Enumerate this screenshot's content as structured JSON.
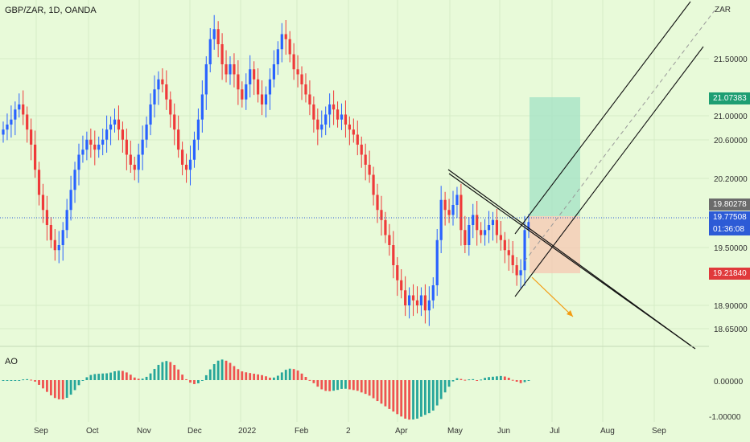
{
  "header": {
    "symbol": "GBP/ZAR, 1D, OANDA",
    "currency": "ZAR"
  },
  "oscillator": {
    "label": "AO"
  },
  "price_labels": {
    "target": {
      "value": "21.07383",
      "color": "#1e9e72"
    },
    "entry": {
      "value": "19.80278",
      "color": "#6b6b6b"
    },
    "last": {
      "value": "19.77508",
      "color": "#2d5bd6"
    },
    "countdown": {
      "value": "01:36:08",
      "color": "#2d5bd6"
    },
    "stop": {
      "value": "19.21840",
      "color": "#e0393b"
    }
  },
  "colors": {
    "bg": "#e8fad9",
    "up": "#2962ff",
    "down": "#ef3a3a",
    "ao_up": "#26a69a",
    "ao_down": "#ef5350"
  },
  "chart_data": {
    "type": "candlestick",
    "title": "GBP/ZAR, 1D, OANDA",
    "price_axis": {
      "ticks": [
        "21.50000",
        "21.00000",
        "20.60000",
        "20.20000",
        "19.50000",
        "18.90000",
        "18.65000"
      ]
    },
    "time_axis": {
      "ticks": [
        "Sep",
        "Oct",
        "Nov",
        "Dec",
        "2022",
        "Feb",
        "2",
        "Apr",
        "May",
        "Jun",
        "Jul",
        "Aug",
        "Sep"
      ]
    },
    "close_series": [
      20.7,
      20.75,
      20.8,
      20.9,
      20.95,
      20.85,
      20.7,
      20.55,
      20.3,
      20.05,
      19.9,
      19.75,
      19.6,
      19.5,
      19.55,
      19.7,
      19.9,
      20.1,
      20.3,
      20.45,
      20.5,
      20.6,
      20.55,
      20.5,
      20.55,
      20.6,
      20.7,
      20.75,
      20.8,
      20.7,
      20.6,
      20.45,
      20.35,
      20.3,
      20.45,
      20.6,
      20.75,
      20.95,
      21.1,
      21.2,
      21.15,
      21.0,
      20.85,
      20.7,
      20.5,
      20.35,
      20.3,
      20.4,
      20.6,
      20.8,
      21.05,
      21.35,
      21.6,
      21.7,
      21.55,
      21.35,
      21.25,
      21.35,
      21.25,
      21.1,
      21.0,
      21.15,
      21.3,
      21.2,
      21.05,
      20.95,
      21.05,
      21.2,
      21.35,
      21.5,
      21.65,
      21.6,
      21.45,
      21.3,
      21.25,
      21.15,
      21.05,
      20.95,
      20.8,
      20.7,
      20.75,
      20.85,
      20.95,
      20.9,
      20.8,
      20.85,
      20.75,
      20.7,
      20.65,
      20.55,
      20.45,
      20.35,
      20.25,
      20.05,
      19.9,
      19.8,
      19.65,
      19.55,
      19.35,
      19.2,
      19.1,
      18.95,
      19.05,
      19.0,
      18.95,
      19.05,
      18.9,
      19.0,
      19.15,
      19.6,
      20.0,
      19.9,
      19.85,
      19.95,
      20.05,
      19.7,
      19.55,
      19.75,
      19.85,
      19.7,
      19.65,
      19.7,
      19.75,
      19.8,
      19.65,
      19.6,
      19.5,
      19.45,
      19.35,
      19.25,
      19.3,
      19.7,
      19.78
    ],
    "trendline": {
      "start": [
        20.3,
        "Apr"
      ],
      "end": [
        18.6,
        "Sep"
      ]
    },
    "position": {
      "type": "long",
      "entry": 19.80278,
      "target": 21.07383,
      "stop": 19.2184
    },
    "ao": {
      "ticks": [
        "0.00000",
        "-1.00000"
      ]
    }
  }
}
